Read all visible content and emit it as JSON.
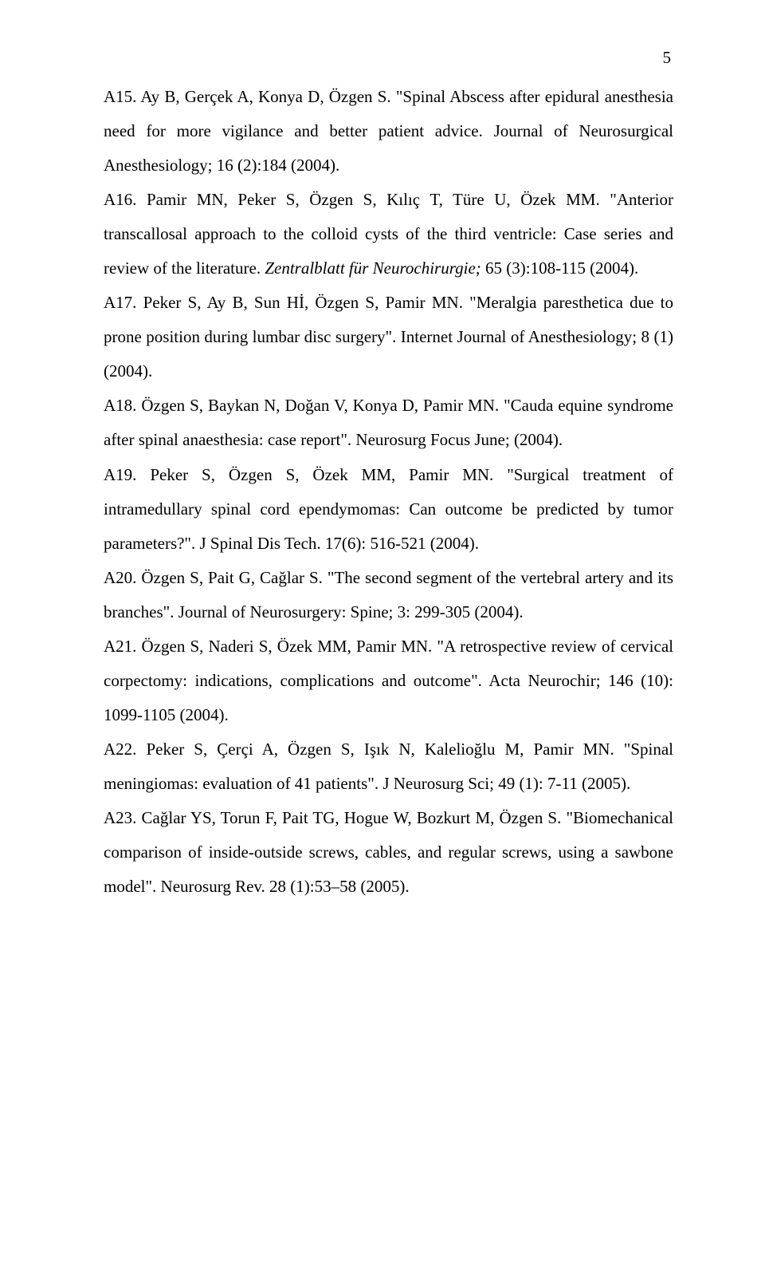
{
  "page": {
    "number": "5"
  },
  "refs": {
    "a15": "A15. Ay B, Gerçek A, Konya D, Özgen S. \"Spinal Abscess after epidural anesthesia need for more vigilance and better patient advice. Journal of Neurosurgical Anesthesiology; 16 (2):184 (2004).",
    "a16_pre": "A16. Pamir MN, Peker S, Özgen S, Kılıç T, Türe U, Özek MM. \"Anterior transcallosal approach to the colloid cysts of the third ventricle: Case series and review of the literature. ",
    "a16_journal": "Zentralblatt für Neurochirurgie;",
    "a16_post": " 65 (3):108-115 (2004).",
    "a17": "A17. Peker S, Ay B, Sun Hİ, Özgen S, Pamir MN. \"Meralgia paresthetica due to prone position during lumbar disc surgery\". Internet Journal of Anesthesiology; 8 (1) (2004).",
    "a18": "A18. Özgen S, Baykan N, Doğan V, Konya D, Pamir MN. \"Cauda equine syndrome after spinal anaesthesia: case report\". Neurosurg Focus June; (2004).",
    "a19": "A19. Peker S, Özgen S, Özek MM, Pamir MN. \"Surgical treatment of intramedullary spinal cord ependymomas: Can outcome be predicted by tumor parameters?\". J Spinal Dis Tech. 17(6): 516-521 (2004).",
    "a20": "A20. Özgen S, Pait G, Cağlar S. \"The second segment of the vertebral artery and its branches\". Journal of Neurosurgery: Spine; 3: 299-305 (2004).",
    "a21": "A21. Özgen S, Naderi S, Özek MM, Pamir MN. \"A retrospective review of cervical corpectomy: indications, complications and outcome\". Acta Neurochir; 146 (10): 1099-1105 (2004).",
    "a22": "A22. Peker S, Çerçi A, Özgen S, Işık N, Kalelioğlu M, Pamir MN. \"Spinal meningiomas: evaluation of 41 patients\".  J Neurosurg Sci; 49 (1): 7-11 (2005).",
    "a23": "A23. Cağlar YS, Torun F, Pait TG, Hogue W, Bozkurt M, Özgen S. \"Biomechanical comparison of inside-outside screws, cables, and regular screws, using a sawbone model\".  Neurosurg Rev. 28 (1):53–58 (2005)."
  }
}
